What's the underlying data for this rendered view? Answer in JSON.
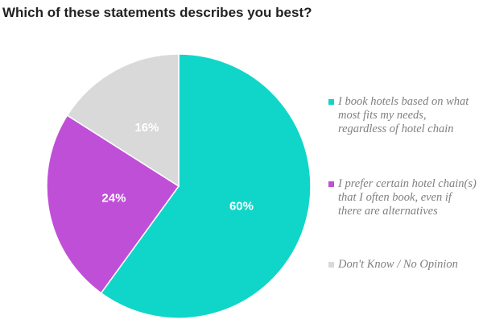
{
  "chart_data": {
    "type": "pie",
    "title": "Which of these statements describes you best?",
    "categories": [
      "I book hotels based on what most fits my needs, regardless of hotel chain",
      "I prefer certain hotel chain(s) that I often book, even if there are alternatives",
      "Don't Know / No Opinion"
    ],
    "values": [
      60,
      24,
      16
    ],
    "value_labels": [
      "60%",
      "24%",
      "16%"
    ],
    "colors": [
      "#10d6c9",
      "#c04fd8",
      "#d9d9d9"
    ],
    "legend": "right"
  }
}
